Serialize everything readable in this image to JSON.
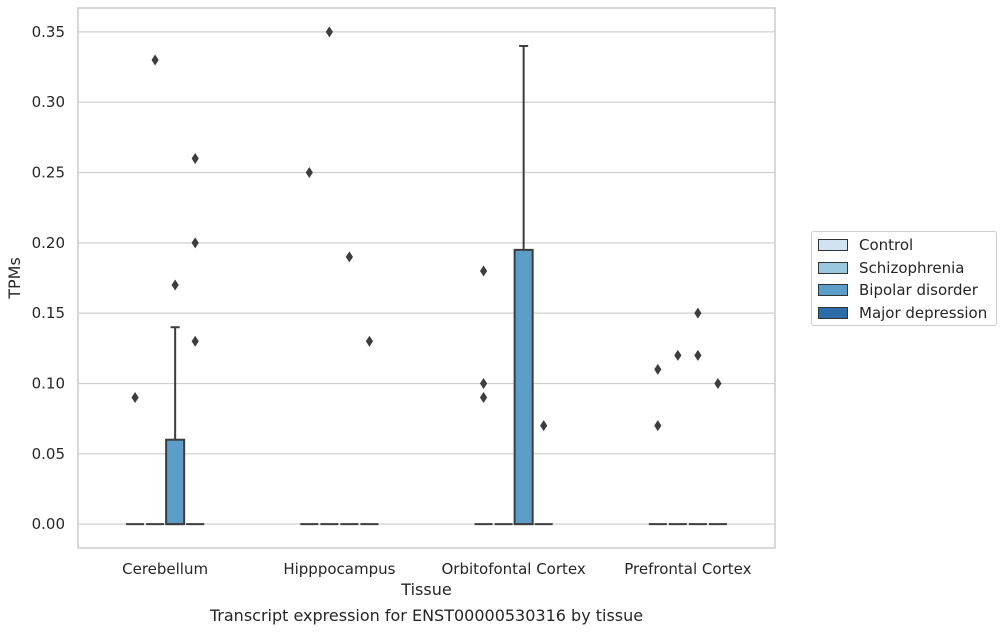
{
  "chart_data": {
    "type": "box",
    "xlabel": "Tissue",
    "ylabel": "TPMs",
    "caption": "Transcript expression for ENST00000530316 by tissue",
    "ylim": [
      -0.017,
      0.367
    ],
    "yticks": [
      "0.00",
      "0.05",
      "0.10",
      "0.15",
      "0.20",
      "0.25",
      "0.30",
      "0.35"
    ],
    "grid": true,
    "legend_position": "right",
    "categories": [
      "Cerebellum",
      "Hipppocampus",
      "Orbitofontal Cortex",
      "Prefrontal Cortex"
    ],
    "series": [
      {
        "name": "Control",
        "color": "#d1e2f1"
      },
      {
        "name": "Schizophrenia",
        "color": "#9ac8e0"
      },
      {
        "name": "Bipolar disorder",
        "color": "#5a9ec9"
      },
      {
        "name": "Major depression",
        "color": "#2b6ca9"
      }
    ],
    "boxes": [
      {
        "category": "Cerebellum",
        "series": "Control",
        "q1": 0,
        "median": 0,
        "q3": 0,
        "whisker_low": 0,
        "whisker_high": 0,
        "outliers": [
          0.09
        ]
      },
      {
        "category": "Cerebellum",
        "series": "Schizophrenia",
        "q1": 0,
        "median": 0,
        "q3": 0,
        "whisker_low": 0,
        "whisker_high": 0,
        "outliers": [
          0.33
        ]
      },
      {
        "category": "Cerebellum",
        "series": "Bipolar disorder",
        "q1": 0,
        "median": 0,
        "q3": 0.06,
        "whisker_low": 0,
        "whisker_high": 0.14,
        "outliers": [
          0.17
        ]
      },
      {
        "category": "Cerebellum",
        "series": "Major depression",
        "q1": 0,
        "median": 0,
        "q3": 0,
        "whisker_low": 0,
        "whisker_high": 0,
        "outliers": [
          0.26,
          0.2,
          0.13
        ]
      },
      {
        "category": "Hipppocampus",
        "series": "Control",
        "q1": 0,
        "median": 0,
        "q3": 0,
        "whisker_low": 0,
        "whisker_high": 0,
        "outliers": [
          0.25
        ]
      },
      {
        "category": "Hipppocampus",
        "series": "Schizophrenia",
        "q1": 0,
        "median": 0,
        "q3": 0,
        "whisker_low": 0,
        "whisker_high": 0,
        "outliers": [
          0.35
        ]
      },
      {
        "category": "Hipppocampus",
        "series": "Bipolar disorder",
        "q1": 0,
        "median": 0,
        "q3": 0,
        "whisker_low": 0,
        "whisker_high": 0,
        "outliers": [
          0.19
        ]
      },
      {
        "category": "Hipppocampus",
        "series": "Major depression",
        "q1": 0,
        "median": 0,
        "q3": 0,
        "whisker_low": 0,
        "whisker_high": 0,
        "outliers": [
          0.13
        ]
      },
      {
        "category": "Orbitofontal Cortex",
        "series": "Control",
        "q1": 0,
        "median": 0,
        "q3": 0,
        "whisker_low": 0,
        "whisker_high": 0,
        "outliers": [
          0.18,
          0.1,
          0.09
        ]
      },
      {
        "category": "Orbitofontal Cortex",
        "series": "Schizophrenia",
        "q1": 0,
        "median": 0,
        "q3": 0,
        "whisker_low": 0,
        "whisker_high": 0,
        "outliers": []
      },
      {
        "category": "Orbitofontal Cortex",
        "series": "Bipolar disorder",
        "q1": 0,
        "median": 0,
        "q3": 0.195,
        "whisker_low": 0,
        "whisker_high": 0.34,
        "outliers": []
      },
      {
        "category": "Orbitofontal Cortex",
        "series": "Major depression",
        "q1": 0,
        "median": 0,
        "q3": 0,
        "whisker_low": 0,
        "whisker_high": 0,
        "outliers": [
          0.07
        ]
      },
      {
        "category": "Prefrontal Cortex",
        "series": "Control",
        "q1": 0,
        "median": 0,
        "q3": 0,
        "whisker_low": 0,
        "whisker_high": 0,
        "outliers": [
          0.11,
          0.07
        ]
      },
      {
        "category": "Prefrontal Cortex",
        "series": "Schizophrenia",
        "q1": 0,
        "median": 0,
        "q3": 0,
        "whisker_low": 0,
        "whisker_high": 0,
        "outliers": [
          0.12
        ]
      },
      {
        "category": "Prefrontal Cortex",
        "series": "Bipolar disorder",
        "q1": 0,
        "median": 0,
        "q3": 0,
        "whisker_low": 0,
        "whisker_high": 0,
        "outliers": [
          0.15,
          0.12
        ]
      },
      {
        "category": "Prefrontal Cortex",
        "series": "Major depression",
        "q1": 0,
        "median": 0,
        "q3": 0,
        "whisker_low": 0,
        "whisker_high": 0,
        "outliers": [
          0.1
        ]
      }
    ]
  }
}
